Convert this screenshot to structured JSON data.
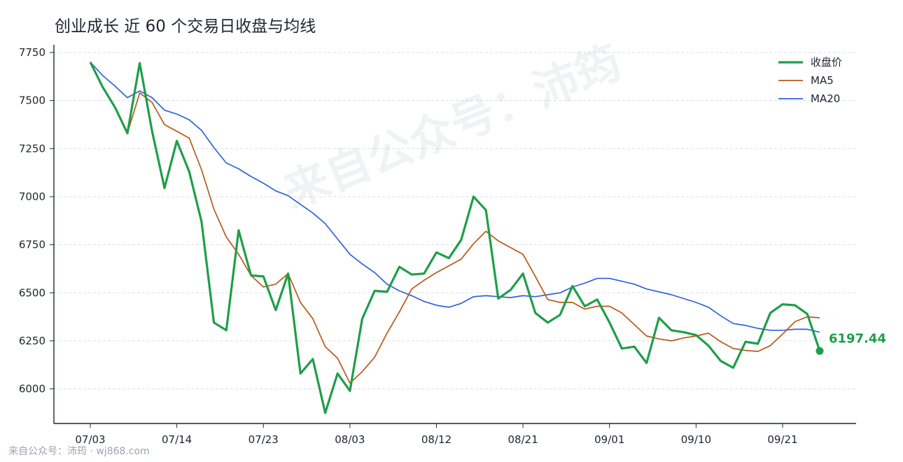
{
  "chart_data": {
    "type": "line",
    "title": "创业成长 近 60 个交易日收盘与均线",
    "xlabel": "",
    "ylabel": "",
    "ylim": [
      5820,
      7790
    ],
    "yticks": [
      6000,
      6250,
      6500,
      6750,
      7000,
      7250,
      7500,
      7750
    ],
    "x_tick_labels": [
      "07/03",
      "07/14",
      "07/23",
      "08/03",
      "08/12",
      "08/21",
      "09/01",
      "09/10",
      "09/21"
    ],
    "x_tick_indices": [
      0,
      7,
      14,
      21,
      28,
      35,
      42,
      49,
      56
    ],
    "n_points": 60,
    "grid": "horizontal",
    "legend_position": "top-right",
    "series": [
      {
        "name": "收盘价",
        "color": "#1f9e4a",
        "values": [
          7700,
          7570,
          7465,
          7330,
          7695,
          7340,
          7045,
          7290,
          7130,
          6870,
          6345,
          6305,
          6825,
          6590,
          6585,
          6410,
          6600,
          6080,
          6155,
          5875,
          6080,
          5990,
          6365,
          6510,
          6505,
          6635,
          6595,
          6600,
          6710,
          6680,
          6775,
          7000,
          6930,
          6470,
          6515,
          6600,
          6395,
          6345,
          6385,
          6535,
          6430,
          6465,
          6345,
          6210,
          6220,
          6135,
          6370,
          6305,
          6295,
          6280,
          6225,
          6145,
          6110,
          6245,
          6235,
          6395,
          6440,
          6435,
          6390,
          6197.44
        ]
      },
      {
        "name": "MA5",
        "color": "#b85a18",
        "values": [
          7700,
          7570,
          7465,
          7330,
          7540,
          7490,
          7375,
          7340,
          7305,
          7140,
          6935,
          6790,
          6700,
          6590,
          6530,
          6545,
          6600,
          6450,
          6365,
          6220,
          6160,
          6030,
          6090,
          6165,
          6290,
          6400,
          6520,
          6565,
          6605,
          6640,
          6675,
          6755,
          6820,
          6770,
          6735,
          6700,
          6585,
          6465,
          6450,
          6450,
          6415,
          6430,
          6430,
          6395,
          6335,
          6275,
          6260,
          6250,
          6265,
          6275,
          6290,
          6245,
          6210,
          6200,
          6195,
          6225,
          6285,
          6350,
          6375,
          6370
        ]
      },
      {
        "name": "MA20",
        "color": "#2f63d8",
        "values": [
          7700,
          7630,
          7575,
          7515,
          7550,
          7515,
          7450,
          7430,
          7400,
          7345,
          7255,
          7175,
          7145,
          7105,
          7070,
          7030,
          7005,
          6960,
          6915,
          6860,
          6780,
          6700,
          6650,
          6605,
          6545,
          6510,
          6485,
          6455,
          6435,
          6425,
          6445,
          6480,
          6485,
          6480,
          6475,
          6485,
          6480,
          6490,
          6500,
          6530,
          6550,
          6575,
          6575,
          6560,
          6545,
          6520,
          6505,
          6490,
          6470,
          6450,
          6425,
          6380,
          6340,
          6330,
          6315,
          6305,
          6305,
          6310,
          6310,
          6295
        ]
      }
    ],
    "last_value_label": "6197.44",
    "watermark": "来自公众号：沛筠",
    "footer": "来自公众号：沛筠 · wj868.com"
  }
}
